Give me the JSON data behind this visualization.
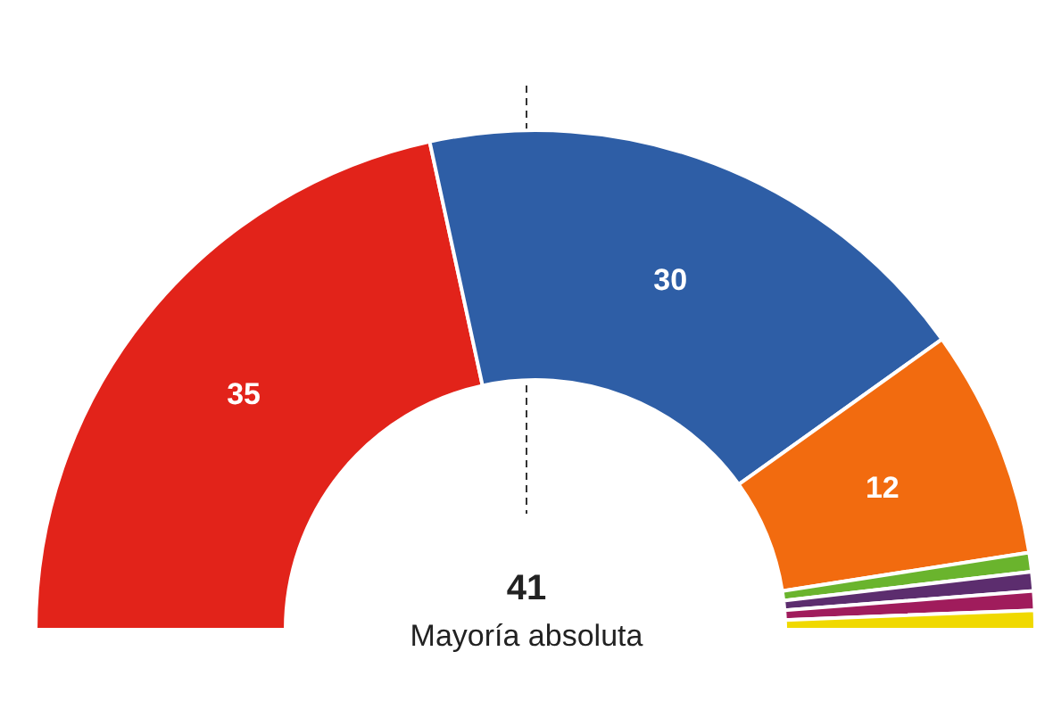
{
  "chart_data": {
    "type": "donut",
    "categories": [
      null,
      null,
      null,
      null,
      null,
      null,
      null
    ],
    "values": [
      35,
      30,
      12,
      1,
      1,
      1,
      1
    ],
    "colors": [
      "#e2231a",
      "#2e5ea6",
      "#f26b0f",
      "#6ab42d",
      "#5c2d6e",
      "#a01c5c",
      "#f0d900"
    ],
    "value_labels": [
      "35",
      "30",
      "12",
      null,
      null,
      null,
      null
    ],
    "annotations": [
      "41",
      "Mayoría absoluta"
    ]
  }
}
